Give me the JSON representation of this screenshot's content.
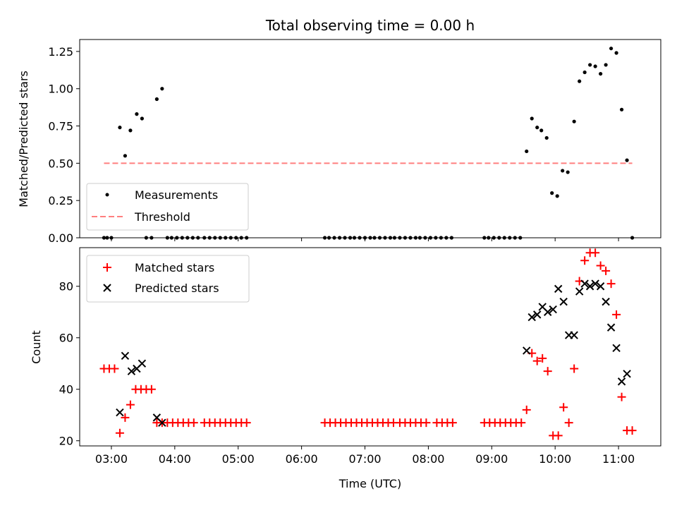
{
  "chart_data": [
    {
      "type": "scatter",
      "title": "Total observing time = 0.00 h",
      "xlabel": "",
      "ylabel": "Matched/Predicted stars",
      "ylim": [
        0,
        1.33
      ],
      "xlim": [
        "02:30",
        "11:40"
      ],
      "yticks": [
        "0.00",
        "0.25",
        "0.50",
        "0.75",
        "1.00",
        "1.25"
      ],
      "legend_position": "lower-left",
      "grid": false,
      "series": [
        {
          "name": "Measurements",
          "marker": "dot",
          "color": "#000000",
          "points": [
            [
              "02:53",
              0
            ],
            [
              "02:56",
              0
            ],
            [
              "03:00",
              0
            ],
            [
              "03:08",
              0.74
            ],
            [
              "03:13",
              0.55
            ],
            [
              "03:18",
              0.72
            ],
            [
              "03:24",
              0.83
            ],
            [
              "03:29",
              0.8
            ],
            [
              "03:33",
              0
            ],
            [
              "03:38",
              0
            ],
            [
              "03:43",
              0.93
            ],
            [
              "03:48",
              1.0
            ],
            [
              "03:53",
              0
            ],
            [
              "03:57",
              0
            ],
            [
              "04:02",
              0
            ],
            [
              "04:07",
              0
            ],
            [
              "04:12",
              0
            ],
            [
              "04:17",
              0
            ],
            [
              "04:22",
              0
            ],
            [
              "04:28",
              0
            ],
            [
              "04:33",
              0
            ],
            [
              "04:38",
              0
            ],
            [
              "04:43",
              0
            ],
            [
              "04:48",
              0
            ],
            [
              "04:53",
              0
            ],
            [
              "04:58",
              0
            ],
            [
              "05:03",
              0
            ],
            [
              "05:08",
              0
            ],
            [
              "06:22",
              0
            ],
            [
              "06:26",
              0
            ],
            [
              "06:31",
              0
            ],
            [
              "06:36",
              0
            ],
            [
              "06:41",
              0
            ],
            [
              "06:46",
              0
            ],
            [
              "06:50",
              0
            ],
            [
              "06:55",
              0
            ],
            [
              "07:00",
              0
            ],
            [
              "07:05",
              0
            ],
            [
              "07:09",
              0
            ],
            [
              "07:14",
              0
            ],
            [
              "07:19",
              0
            ],
            [
              "07:24",
              0
            ],
            [
              "07:28",
              0
            ],
            [
              "07:33",
              0
            ],
            [
              "07:38",
              0
            ],
            [
              "07:43",
              0
            ],
            [
              "07:48",
              0
            ],
            [
              "07:52",
              0
            ],
            [
              "07:57",
              0
            ],
            [
              "08:02",
              0
            ],
            [
              "08:07",
              0
            ],
            [
              "08:12",
              0
            ],
            [
              "08:17",
              0
            ],
            [
              "08:22",
              0
            ],
            [
              "08:53",
              0
            ],
            [
              "08:57",
              0
            ],
            [
              "09:02",
              0
            ],
            [
              "09:07",
              0
            ],
            [
              "09:12",
              0
            ],
            [
              "09:17",
              0
            ],
            [
              "09:22",
              0
            ],
            [
              "09:27",
              0
            ],
            [
              "09:33",
              0.58
            ],
            [
              "09:38",
              0.8
            ],
            [
              "09:43",
              0.74
            ],
            [
              "09:47",
              0.72
            ],
            [
              "09:52",
              0.67
            ],
            [
              "09:57",
              0.3
            ],
            [
              "10:02",
              0.28
            ],
            [
              "10:07",
              0.45
            ],
            [
              "10:12",
              0.44
            ],
            [
              "10:18",
              0.78
            ],
            [
              "10:23",
              1.05
            ],
            [
              "10:28",
              1.11
            ],
            [
              "10:33",
              1.16
            ],
            [
              "10:38",
              1.15
            ],
            [
              "10:43",
              1.1
            ],
            [
              "10:48",
              1.16
            ],
            [
              "10:53",
              1.27
            ],
            [
              "10:58",
              1.24
            ],
            [
              "11:03",
              0.86
            ],
            [
              "11:08",
              0.52
            ],
            [
              "11:13",
              0
            ]
          ]
        },
        {
          "name": "Threshold",
          "marker": "dashed-line",
          "color": "#ff7f7f",
          "points": [
            [
              "02:53",
              0.5
            ],
            [
              "11:13",
              0.5
            ]
          ]
        }
      ]
    },
    {
      "type": "scatter",
      "title": "",
      "xlabel": "Time (UTC)",
      "ylabel": "Count",
      "ylim": [
        18,
        95
      ],
      "xlim": [
        "02:30",
        "11:40"
      ],
      "yticks": [
        "20",
        "40",
        "60",
        "80"
      ],
      "xticks": [
        "03:00",
        "04:00",
        "05:00",
        "06:00",
        "07:00",
        "08:00",
        "09:00",
        "10:00",
        "11:00"
      ],
      "legend_position": "upper-left",
      "grid": false,
      "series": [
        {
          "name": "Matched stars",
          "marker": "plus",
          "color": "#ff0000",
          "points": [
            [
              "02:53",
              48
            ],
            [
              "02:58",
              48
            ],
            [
              "03:03",
              48
            ],
            [
              "03:08",
              23
            ],
            [
              "03:13",
              29
            ],
            [
              "03:18",
              34
            ],
            [
              "03:23",
              40
            ],
            [
              "03:28",
              40
            ],
            [
              "03:33",
              40
            ],
            [
              "03:38",
              40
            ],
            [
              "03:43",
              27
            ],
            [
              "03:48",
              27
            ],
            [
              "03:53",
              27
            ],
            [
              "03:58",
              27
            ],
            [
              "04:03",
              27
            ],
            [
              "04:08",
              27
            ],
            [
              "04:13",
              27
            ],
            [
              "04:18",
              27
            ],
            [
              "04:28",
              27
            ],
            [
              "04:33",
              27
            ],
            [
              "04:38",
              27
            ],
            [
              "04:43",
              27
            ],
            [
              "04:48",
              27
            ],
            [
              "04:53",
              27
            ],
            [
              "04:58",
              27
            ],
            [
              "05:03",
              27
            ],
            [
              "05:08",
              27
            ],
            [
              "06:22",
              27
            ],
            [
              "06:27",
              27
            ],
            [
              "06:32",
              27
            ],
            [
              "06:37",
              27
            ],
            [
              "06:42",
              27
            ],
            [
              "06:47",
              27
            ],
            [
              "06:52",
              27
            ],
            [
              "06:57",
              27
            ],
            [
              "07:02",
              27
            ],
            [
              "07:07",
              27
            ],
            [
              "07:12",
              27
            ],
            [
              "07:17",
              27
            ],
            [
              "07:22",
              27
            ],
            [
              "07:27",
              27
            ],
            [
              "07:33",
              27
            ],
            [
              "07:38",
              27
            ],
            [
              "07:43",
              27
            ],
            [
              "07:48",
              27
            ],
            [
              "07:53",
              27
            ],
            [
              "07:58",
              27
            ],
            [
              "08:08",
              27
            ],
            [
              "08:13",
              27
            ],
            [
              "08:18",
              27
            ],
            [
              "08:23",
              27
            ],
            [
              "08:53",
              27
            ],
            [
              "08:58",
              27
            ],
            [
              "09:03",
              27
            ],
            [
              "09:08",
              27
            ],
            [
              "09:13",
              27
            ],
            [
              "09:18",
              27
            ],
            [
              "09:23",
              27
            ],
            [
              "09:28",
              27
            ],
            [
              "09:33",
              32
            ],
            [
              "09:38",
              54
            ],
            [
              "09:43",
              51
            ],
            [
              "09:48",
              52
            ],
            [
              "09:53",
              47
            ],
            [
              "09:58",
              22
            ],
            [
              "10:03",
              22
            ],
            [
              "10:08",
              33
            ],
            [
              "10:13",
              27
            ],
            [
              "10:18",
              48
            ],
            [
              "10:23",
              82
            ],
            [
              "10:28",
              90
            ],
            [
              "10:33",
              93
            ],
            [
              "10:38",
              93
            ],
            [
              "10:43",
              88
            ],
            [
              "10:48",
              86
            ],
            [
              "10:53",
              81
            ],
            [
              "10:58",
              69
            ],
            [
              "11:03",
              37
            ],
            [
              "11:08",
              24
            ],
            [
              "11:13",
              24
            ]
          ]
        },
        {
          "name": "Predicted stars",
          "marker": "x",
          "color": "#000000",
          "points": [
            [
              "03:08",
              31
            ],
            [
              "03:13",
              53
            ],
            [
              "03:19",
              47
            ],
            [
              "03:24",
              48
            ],
            [
              "03:29",
              50
            ],
            [
              "03:43",
              29
            ],
            [
              "03:48",
              27
            ],
            [
              "09:33",
              55
            ],
            [
              "09:38",
              68
            ],
            [
              "09:43",
              69
            ],
            [
              "09:48",
              72
            ],
            [
              "09:53",
              70
            ],
            [
              "09:58",
              71
            ],
            [
              "10:03",
              79
            ],
            [
              "10:08",
              74
            ],
            [
              "10:13",
              61
            ],
            [
              "10:18",
              61
            ],
            [
              "10:23",
              78
            ],
            [
              "10:28",
              81
            ],
            [
              "10:33",
              80
            ],
            [
              "10:38",
              81
            ],
            [
              "10:43",
              80
            ],
            [
              "10:48",
              74
            ],
            [
              "10:53",
              64
            ],
            [
              "10:58",
              56
            ],
            [
              "11:03",
              43
            ],
            [
              "11:08",
              46
            ]
          ]
        }
      ]
    }
  ]
}
